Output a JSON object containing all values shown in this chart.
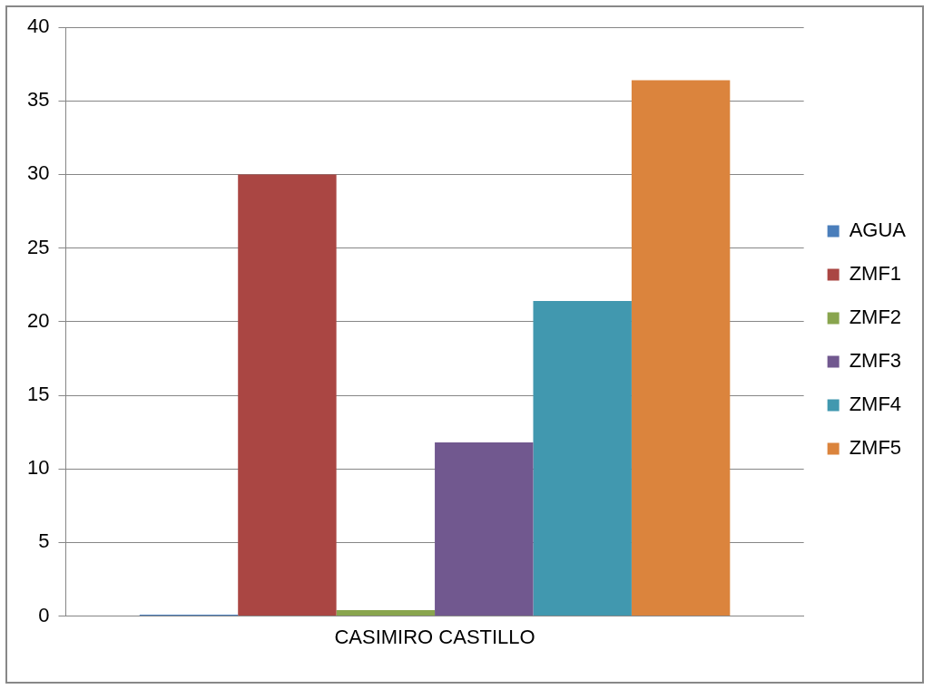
{
  "chart_data": {
    "type": "bar",
    "categories": [
      "CASIMIRO CASTILLO"
    ],
    "series": [
      {
        "name": "AGUA",
        "color": "#4a7ebb",
        "values": [
          0.1
        ]
      },
      {
        "name": "ZMF1",
        "color": "#aa4643",
        "values": [
          30
        ]
      },
      {
        "name": "ZMF2",
        "color": "#89a54e",
        "values": [
          0.4
        ]
      },
      {
        "name": "ZMF3",
        "color": "#71588f",
        "values": [
          11.8
        ]
      },
      {
        "name": "ZMF4",
        "color": "#4198af",
        "values": [
          21.4
        ]
      },
      {
        "name": "ZMF5",
        "color": "#db843d",
        "values": [
          36.4
        ]
      }
    ],
    "ylim": [
      0,
      40
    ],
    "yticks": [
      0,
      5,
      10,
      15,
      20,
      25,
      30,
      35,
      40
    ],
    "grid": "y",
    "legend": "right"
  }
}
